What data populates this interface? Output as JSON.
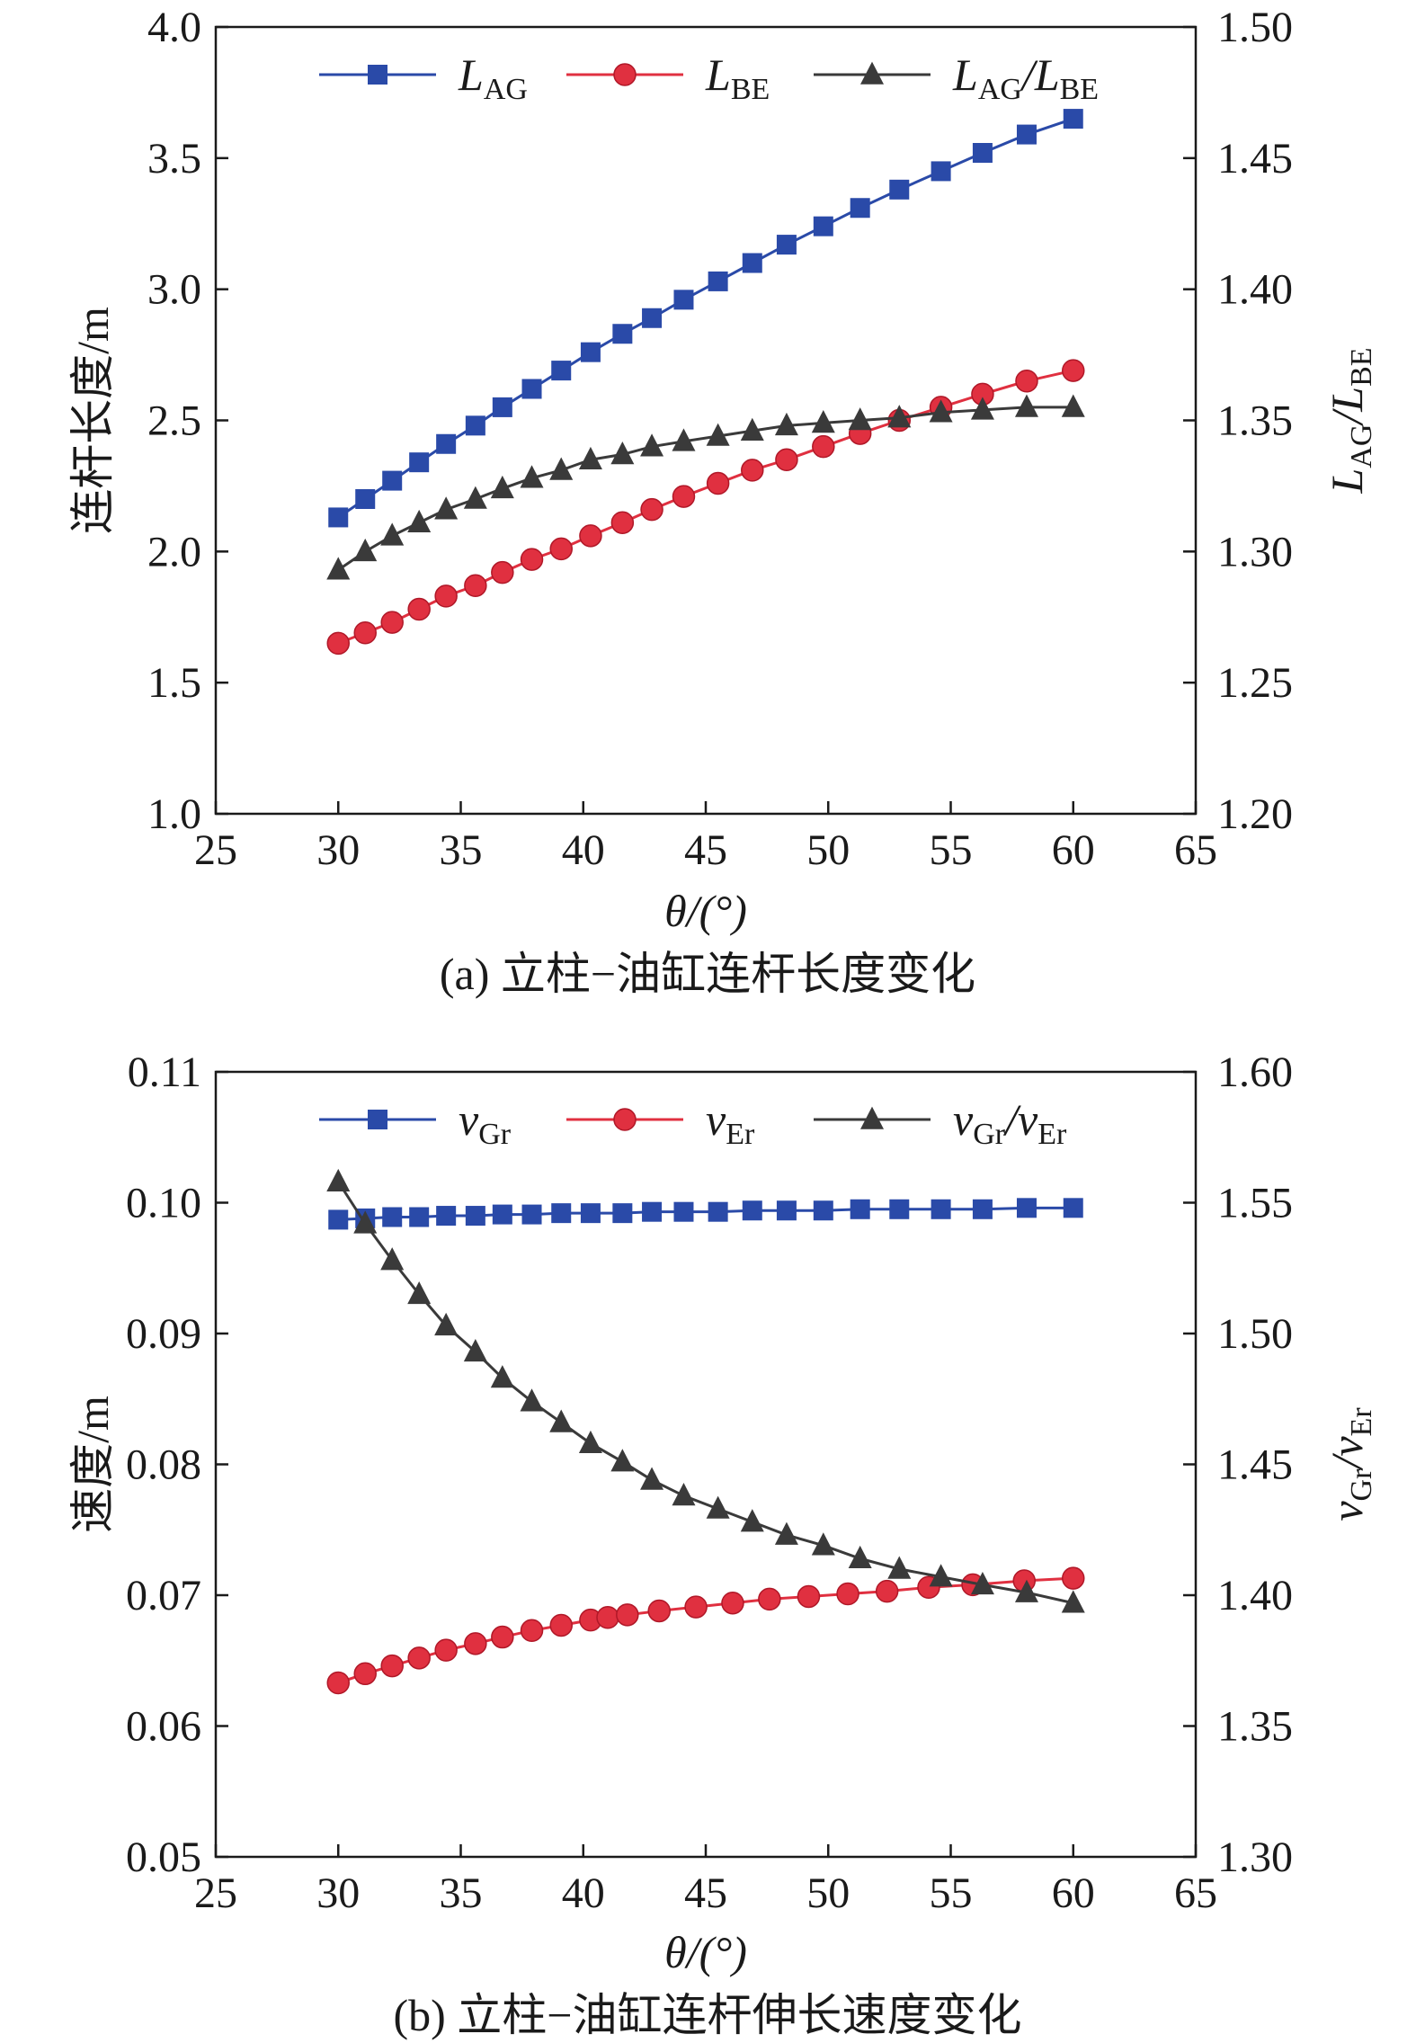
{
  "chart_data": [
    {
      "type": "line",
      "caption": "(a) 立柱−油缸连杆长度变化",
      "xlabel": "θ/(°)",
      "ylabel_left": "连杆长度/m",
      "ylabel_right": {
        "main": "L",
        "sub1": "AG",
        "sep": "/L",
        "sub2": "BE"
      },
      "xlim": [
        25,
        65
      ],
      "ylim_left": [
        1.0,
        4.0
      ],
      "ylim_right": [
        1.2,
        1.5
      ],
      "x_ticks": [
        "25",
        "30",
        "35",
        "40",
        "45",
        "50",
        "55",
        "60",
        "65"
      ],
      "y_left_ticks": [
        "1.0",
        "1.5",
        "2.0",
        "2.5",
        "3.0",
        "3.5",
        "4.0"
      ],
      "y_right_ticks": [
        "1.20",
        "1.25",
        "1.30",
        "1.35",
        "1.40",
        "1.45",
        "1.50"
      ],
      "legend_position": "top",
      "x": [
        30,
        31.1,
        32.2,
        33.3,
        34.4,
        35.6,
        36.7,
        37.9,
        39.1,
        40.3,
        41.6,
        42.8,
        44.1,
        45.5,
        46.9,
        48.3,
        49.8,
        51.3,
        52.9,
        54.6,
        56.3,
        58.1,
        60
      ],
      "series": [
        {
          "name": "L",
          "sub": "AG",
          "axis": "left",
          "marker": "square",
          "color": "#2a4aa8",
          "values": [
            2.13,
            2.2,
            2.27,
            2.34,
            2.41,
            2.48,
            2.55,
            2.62,
            2.69,
            2.76,
            2.83,
            2.89,
            2.96,
            3.03,
            3.1,
            3.17,
            3.24,
            3.31,
            3.38,
            3.45,
            3.52,
            3.59,
            3.65
          ]
        },
        {
          "name": "L",
          "sub": "BE",
          "axis": "left",
          "marker": "circle",
          "color": "#e03040",
          "values": [
            1.65,
            1.69,
            1.73,
            1.78,
            1.83,
            1.87,
            1.92,
            1.97,
            2.01,
            2.06,
            2.11,
            2.16,
            2.21,
            2.26,
            2.31,
            2.35,
            2.4,
            2.45,
            2.5,
            2.55,
            2.6,
            2.65,
            2.69
          ]
        },
        {
          "name": "L",
          "sub": "AG",
          "sep": "/L",
          "sub2": "BE",
          "axis": "right",
          "marker": "triangle",
          "color": "#3a3a3a",
          "values": [
            1.293,
            1.3,
            1.306,
            1.311,
            1.316,
            1.32,
            1.324,
            1.328,
            1.331,
            1.335,
            1.337,
            1.34,
            1.342,
            1.344,
            1.346,
            1.348,
            1.349,
            1.35,
            1.351,
            1.353,
            1.354,
            1.355,
            1.355
          ]
        }
      ]
    },
    {
      "type": "line",
      "caption": "(b) 立柱−油缸连杆伸长速度变化",
      "xlabel": "θ/(°)",
      "ylabel_left": "速度/m",
      "ylabel_right": {
        "main": "v",
        "sub1": "Gr",
        "sep": "/v",
        "sub2": "Er"
      },
      "xlim": [
        25,
        65
      ],
      "ylim_left": [
        0.05,
        0.11
      ],
      "ylim_right": [
        1.3,
        1.6
      ],
      "x_ticks": [
        "25",
        "30",
        "35",
        "40",
        "45",
        "50",
        "55",
        "60",
        "65"
      ],
      "y_left_ticks": [
        "0.05",
        "0.06",
        "0.07",
        "0.08",
        "0.09",
        "0.10",
        "0.11"
      ],
      "y_right_ticks": [
        "1.30",
        "1.35",
        "1.40",
        "1.45",
        "1.50",
        "1.55",
        "1.60"
      ],
      "legend_position": "top",
      "series": [
        {
          "name": "v",
          "sub": "Gr",
          "axis": "left",
          "marker": "square",
          "color": "#2a4aa8",
          "x": [
            30,
            31.1,
            32.2,
            33.3,
            34.4,
            35.6,
            36.7,
            37.9,
            39.1,
            40.3,
            41.6,
            42.8,
            44.1,
            45.5,
            46.9,
            48.3,
            49.8,
            51.3,
            52.9,
            54.6,
            56.3,
            58.1,
            60
          ],
          "values": [
            0.0987,
            0.0988,
            0.0989,
            0.0989,
            0.099,
            0.099,
            0.0991,
            0.0991,
            0.0992,
            0.0992,
            0.0992,
            0.0993,
            0.0993,
            0.0993,
            0.0994,
            0.0994,
            0.0994,
            0.0995,
            0.0995,
            0.0995,
            0.0995,
            0.0996,
            0.0996
          ]
        },
        {
          "name": "v",
          "sub": "Er",
          "axis": "left",
          "marker": "circle",
          "color": "#e03040",
          "x": [
            30,
            31.1,
            32.2,
            33.3,
            34.4,
            35.6,
            36.7,
            37.9,
            39.1,
            40.3,
            41,
            41.8,
            43.1,
            44.6,
            46.1,
            47.6,
            49.2,
            50.8,
            52.4,
            54.1,
            55.9,
            58.0,
            60
          ],
          "values": [
            0.0633,
            0.064,
            0.0646,
            0.0652,
            0.0658,
            0.0663,
            0.0668,
            0.0673,
            0.0677,
            0.0681,
            0.0683,
            0.0685,
            0.0688,
            0.0691,
            0.0694,
            0.0697,
            0.0699,
            0.0701,
            0.0703,
            0.0706,
            0.0708,
            0.0711,
            0.0713
          ]
        },
        {
          "name": "v",
          "sub": "Gr",
          "sep": "/v",
          "sub2": "Er",
          "axis": "right",
          "marker": "triangle",
          "color": "#3a3a3a",
          "x": [
            30,
            31.1,
            32.2,
            33.3,
            34.4,
            35.6,
            36.7,
            37.9,
            39.1,
            40.3,
            41.6,
            42.8,
            44.1,
            45.5,
            46.9,
            48.3,
            49.8,
            51.3,
            52.9,
            54.6,
            56.3,
            58.1,
            60
          ],
          "values": [
            1.558,
            1.542,
            1.528,
            1.515,
            1.503,
            1.493,
            1.483,
            1.474,
            1.466,
            1.458,
            1.451,
            1.444,
            1.438,
            1.433,
            1.428,
            1.423,
            1.419,
            1.414,
            1.41,
            1.407,
            1.404,
            1.401,
            1.397
          ]
        }
      ]
    }
  ]
}
